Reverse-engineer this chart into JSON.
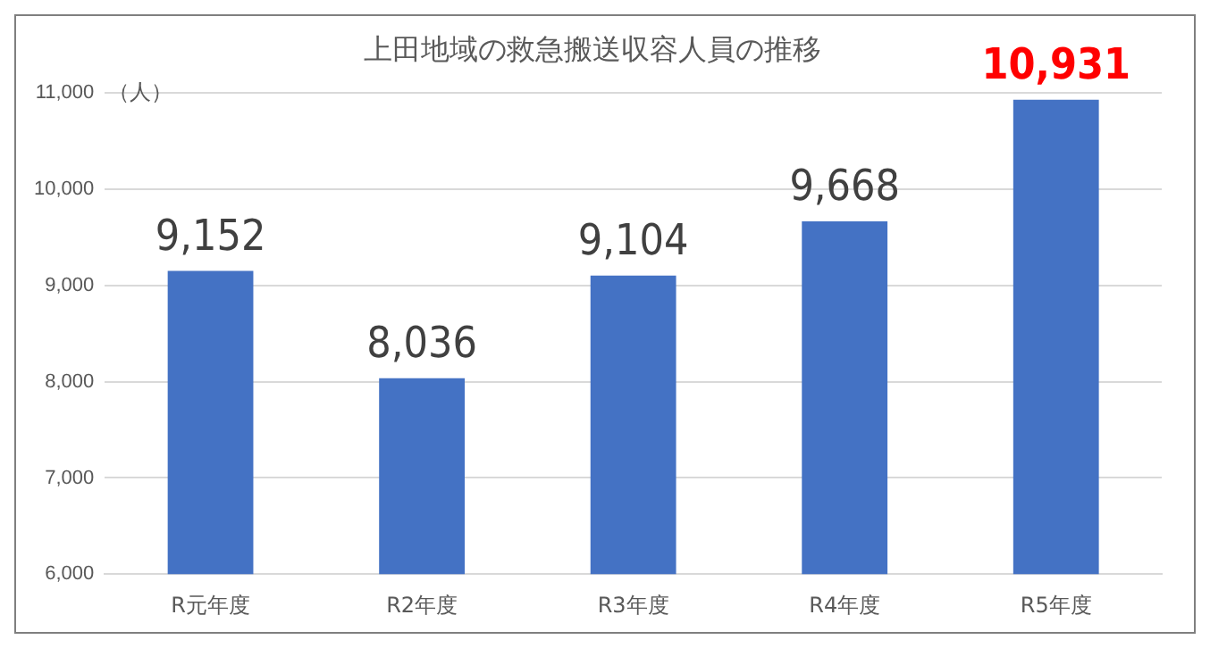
{
  "chart_data": {
    "type": "bar",
    "title": "上田地域の救急搬送収容人員の推移",
    "ylabel": "（人）",
    "categories": [
      "R元年度",
      "R2年度",
      "R3年度",
      "R4年度",
      "R5年度"
    ],
    "values": [
      9152,
      8036,
      9104,
      9668,
      10931
    ],
    "color": "#4472c4",
    "ylim": [
      6000,
      11000
    ],
    "yticks": [
      {
        "value": 6000,
        "label": "6,000"
      },
      {
        "value": 7000,
        "label": "7,000"
      },
      {
        "value": 8000,
        "label": "8,000"
      },
      {
        "value": 9000,
        "label": "9,000"
      },
      {
        "value": 10000,
        "label": "10,000"
      },
      {
        "value": 11000,
        "label": "11,000"
      }
    ],
    "value_labels": [
      "9,152",
      "8,036",
      "9,104",
      "9,668",
      "10,931"
    ],
    "grid": "y"
  }
}
